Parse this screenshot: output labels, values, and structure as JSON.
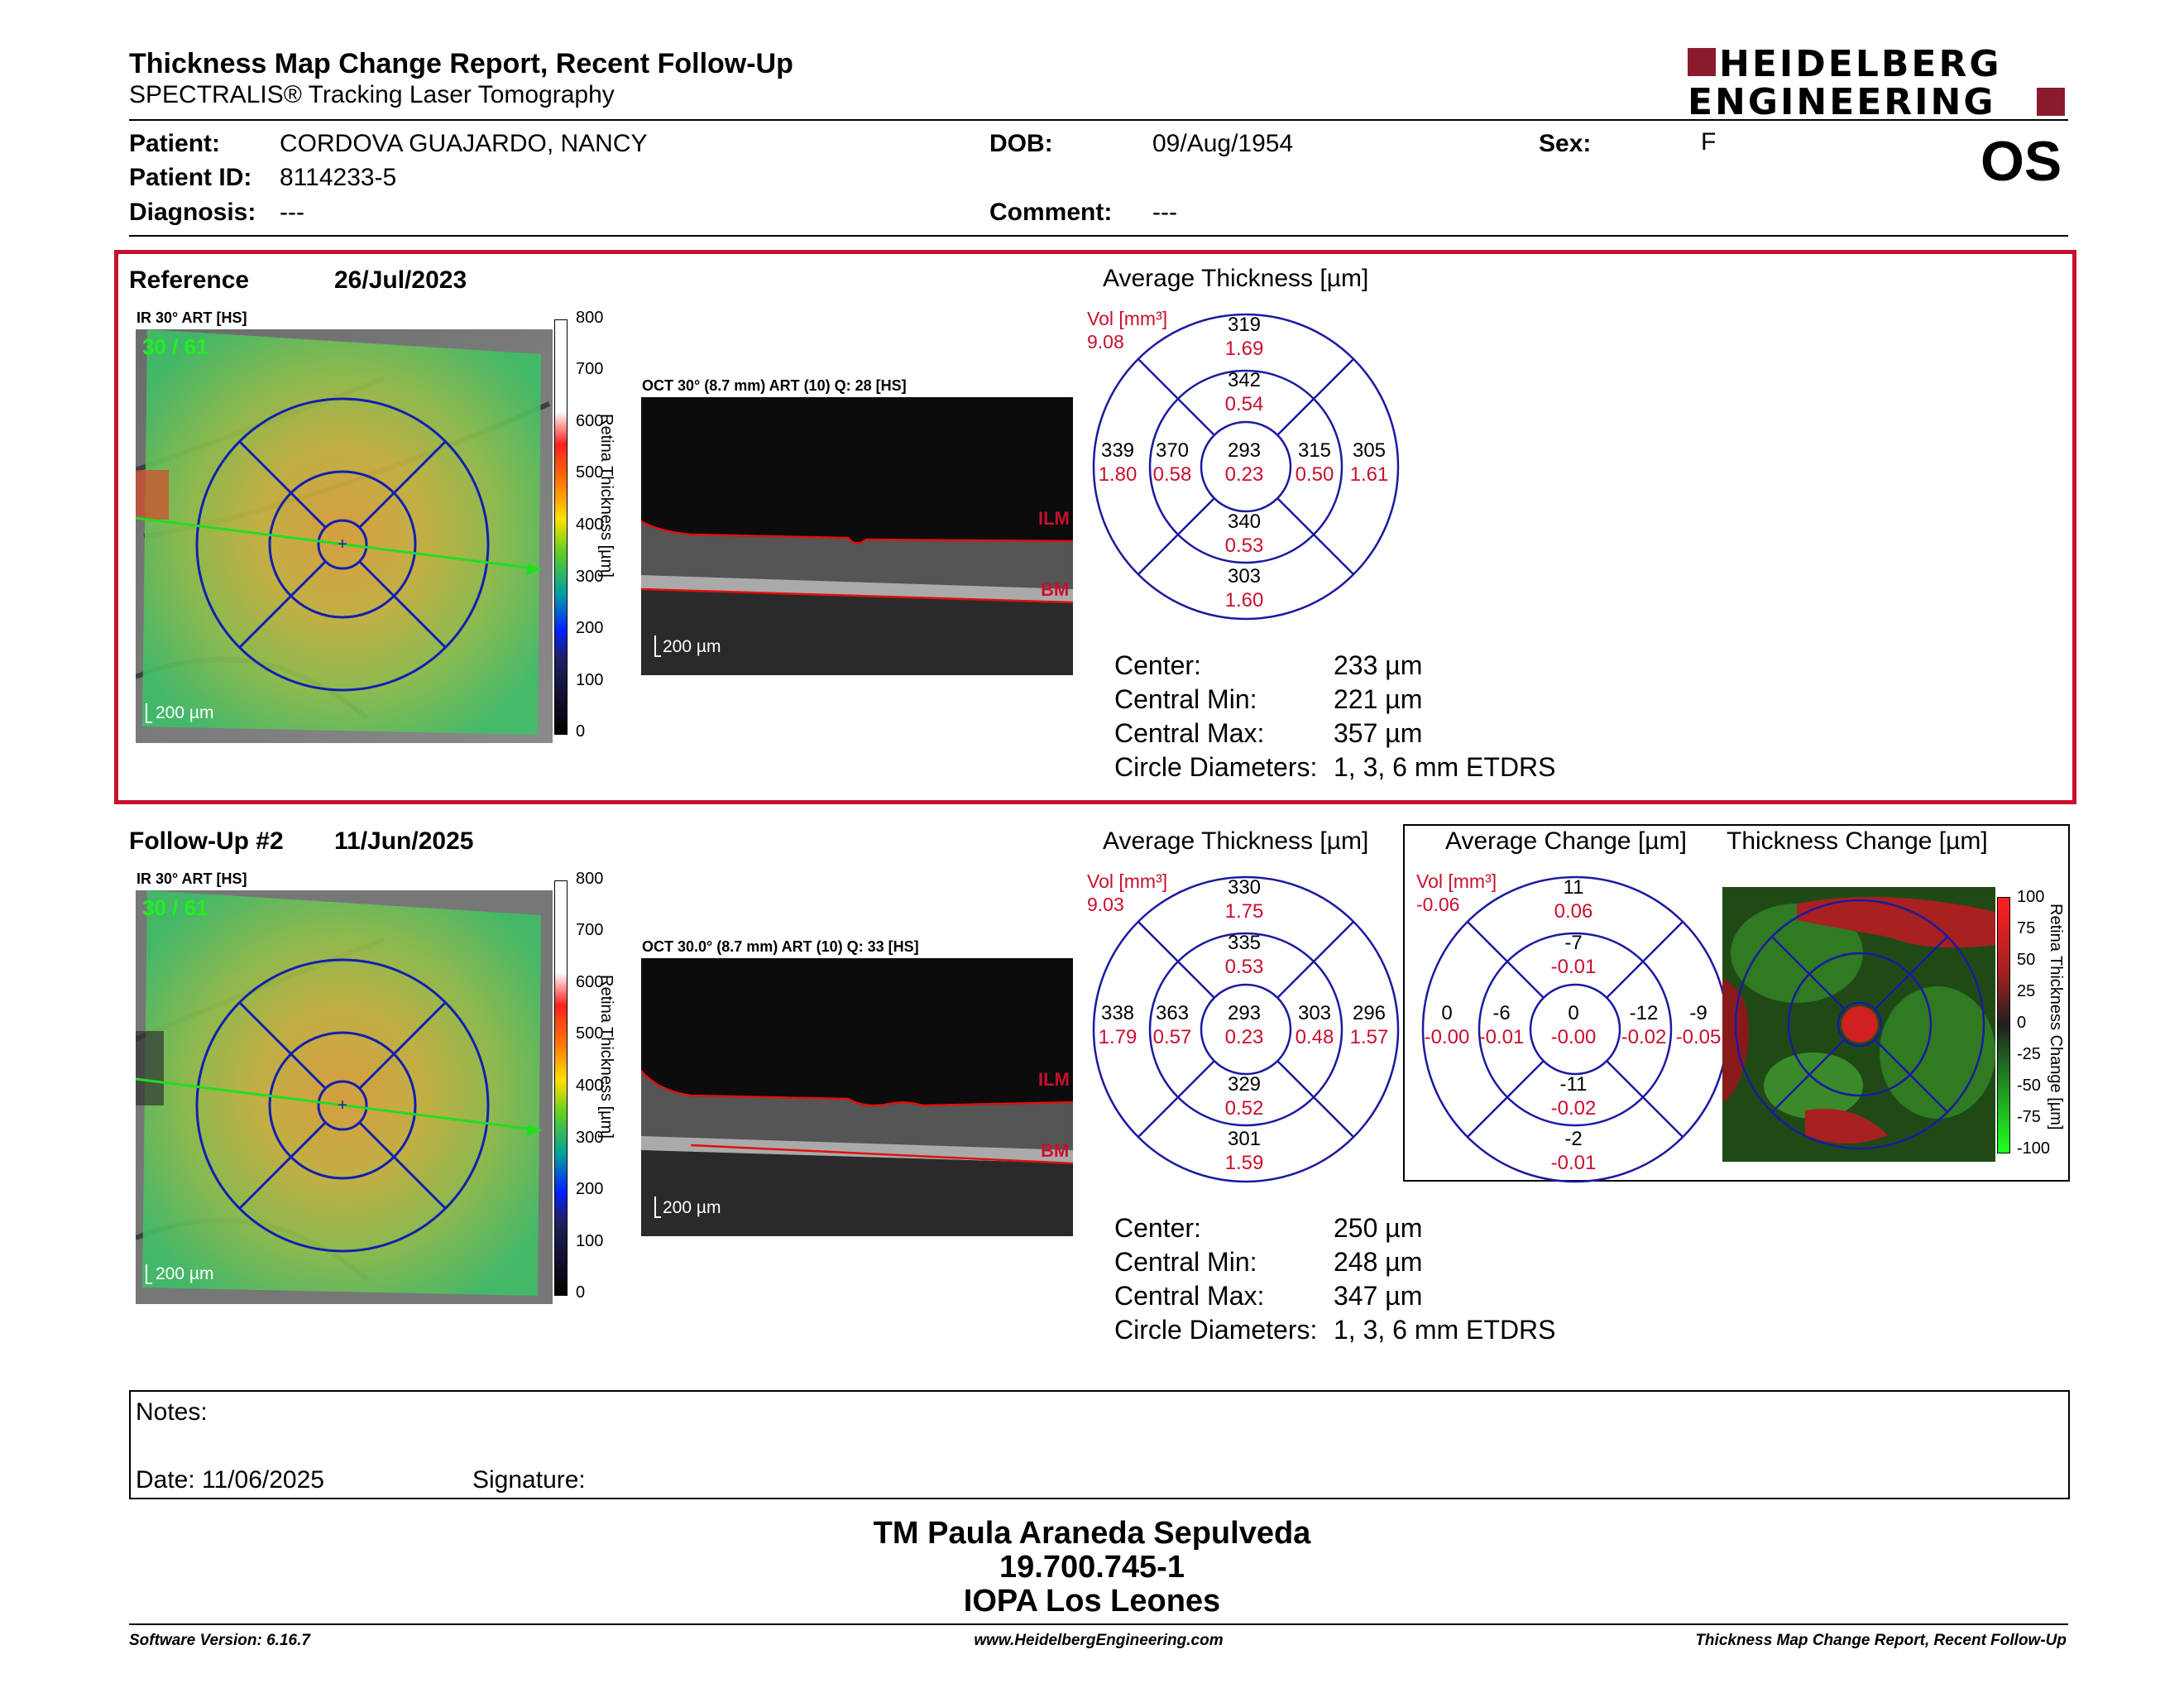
{
  "header": {
    "title": "Thickness Map Change Report, Recent Follow-Up",
    "subtitle": "SPECTRALIS® Tracking Laser Tomography",
    "logo_line1": "HEIDELBERG",
    "logo_line2": "ENGINEERING",
    "eye": "OS"
  },
  "patient": {
    "patient_label": "Patient:",
    "patient_value": "CORDOVA GUAJARDO, NANCY",
    "dob_label": "DOB:",
    "dob_value": "09/Aug/1954",
    "sex_label": "Sex:",
    "sex_value": "F",
    "id_label": "Patient ID:",
    "id_value": "8114233-5",
    "diagnosis_label": "Diagnosis:",
    "diagnosis_value": "---",
    "comment_label": "Comment:",
    "comment_value": "---"
  },
  "colorbar": {
    "ticks": [
      "800",
      "700",
      "600",
      "500",
      "400",
      "300",
      "200",
      "100",
      "0"
    ],
    "title": "Retina Thickness [µm]"
  },
  "change_colorbar": {
    "ticks": [
      "100",
      "75",
      "50",
      "25",
      "0",
      "-25",
      "-50",
      "-75",
      "-100"
    ],
    "title": "Retina Thickness Change [µm]"
  },
  "reference": {
    "label": "Reference",
    "date": "26/Jul/2023",
    "ir_label": "IR 30° ART [HS]",
    "ir_overlay": "30 / 61",
    "scale": "200 µm",
    "oct_label": "OCT 30° (8.7 mm) ART (10) Q: 28 [HS]",
    "oct_scale": "200 µm",
    "ilm": "ILM",
    "bm": "BM",
    "avg_title": "Average Thickness [µm]",
    "vol_label": "Vol [mm³]",
    "vol_value": "9.08",
    "sectors": {
      "center": {
        "t": "293",
        "v": "0.23"
      },
      "inner_sup": {
        "t": "342",
        "v": "0.54"
      },
      "inner_inf": {
        "t": "340",
        "v": "0.53"
      },
      "inner_tmp": {
        "t": "370",
        "v": "0.58"
      },
      "inner_nas": {
        "t": "315",
        "v": "0.50"
      },
      "outer_sup": {
        "t": "319",
        "v": "1.69"
      },
      "outer_inf": {
        "t": "303",
        "v": "1.60"
      },
      "outer_tmp": {
        "t": "339",
        "v": "1.80"
      },
      "outer_nas": {
        "t": "305",
        "v": "1.61"
      }
    },
    "stats": {
      "center_label": "Center:",
      "center_value": "233 µm",
      "min_label": "Central Min:",
      "min_value": "221 µm",
      "max_label": "Central Max:",
      "max_value": "357 µm",
      "diam_label": "Circle Diameters:",
      "diam_value": "1, 3, 6 mm ETDRS"
    }
  },
  "followup": {
    "label": "Follow-Up #2",
    "date": "11/Jun/2025",
    "ir_label": "IR 30° ART [HS]",
    "ir_overlay": "30 / 61",
    "scale": "200 µm",
    "oct_label": "OCT 30.0° (8.7 mm) ART (10) Q: 33 [HS]",
    "oct_scale": "200 µm",
    "ilm": "ILM",
    "bm": "BM",
    "avg_title": "Average Thickness [µm]",
    "vol_label": "Vol [mm³]",
    "vol_value": "9.03",
    "sectors": {
      "center": {
        "t": "293",
        "v": "0.23"
      },
      "inner_sup": {
        "t": "335",
        "v": "0.53"
      },
      "inner_inf": {
        "t": "329",
        "v": "0.52"
      },
      "inner_tmp": {
        "t": "363",
        "v": "0.57"
      },
      "inner_nas": {
        "t": "303",
        "v": "0.48"
      },
      "outer_sup": {
        "t": "330",
        "v": "1.75"
      },
      "outer_inf": {
        "t": "301",
        "v": "1.59"
      },
      "outer_tmp": {
        "t": "338",
        "v": "1.79"
      },
      "outer_nas": {
        "t": "296",
        "v": "1.57"
      }
    },
    "stats": {
      "center_label": "Center:",
      "center_value": "250 µm",
      "min_label": "Central Min:",
      "min_value": "248 µm",
      "max_label": "Central Max:",
      "max_value": "347 µm",
      "diam_label": "Circle Diameters:",
      "diam_value": "1, 3, 6 mm ETDRS"
    }
  },
  "change": {
    "avg_title": "Average Change [µm]",
    "map_title": "Thickness Change [µm]",
    "vol_label": "Vol [mm³]",
    "vol_value": "-0.06",
    "sectors": {
      "center": {
        "t": "0",
        "v": "-0.00"
      },
      "inner_sup": {
        "t": "-7",
        "v": "-0.01"
      },
      "inner_inf": {
        "t": "-11",
        "v": "-0.02"
      },
      "inner_tmp": {
        "t": "-6",
        "v": "-0.01"
      },
      "inner_nas": {
        "t": "-12",
        "v": "-0.02"
      },
      "outer_sup": {
        "t": "11",
        "v": "0.06"
      },
      "outer_inf": {
        "t": "-2",
        "v": "-0.01"
      },
      "outer_tmp": {
        "t": "0",
        "v": "-0.00"
      },
      "outer_nas": {
        "t": "-9",
        "v": "-0.05"
      }
    }
  },
  "notes": {
    "notes_label": "Notes:",
    "date_label": "Date: 11/06/2025",
    "signature_label": "Signature:"
  },
  "signer": {
    "name": "TM Paula Araneda Sepulveda",
    "id": "19.700.745-1",
    "institution": "IOPA Los Leones"
  },
  "footer": {
    "version": "Software Version: 6.16.7",
    "website": "www.HeidelbergEngineering.com",
    "report": "Thickness Map Change Report, Recent Follow-Up"
  }
}
